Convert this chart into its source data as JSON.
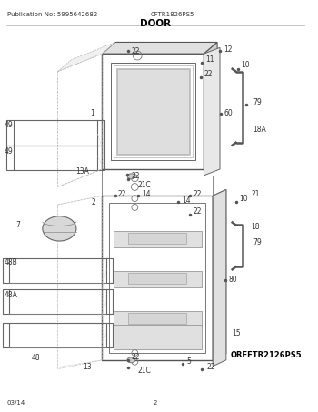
{
  "title": "DOOR",
  "pub_no": "Publication No: 5995642682",
  "model": "CFTR1826PS5",
  "footer_left": "03/14",
  "footer_center": "2",
  "diagram_ref": "ORFFTR2126PS5",
  "bg_color": "#ffffff",
  "fig_width": 3.5,
  "fig_height": 4.53,
  "dpi": 100
}
